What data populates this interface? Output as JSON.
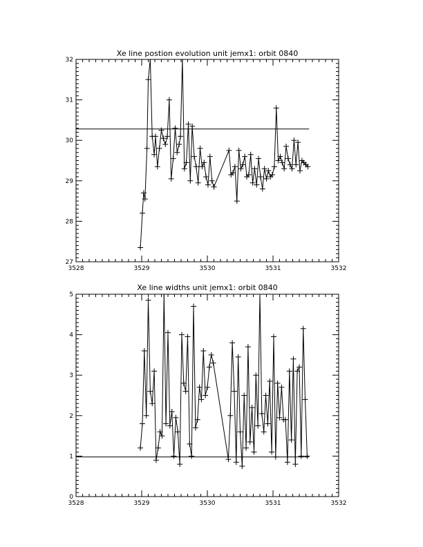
{
  "chart_data": [
    {
      "type": "line",
      "title": "Xe line postion evolution unit jemx1: orbit 0840",
      "xlabel": "",
      "ylabel": "",
      "xlim": [
        3528,
        3532
      ],
      "ylim": [
        27,
        32
      ],
      "xticks": [
        3528,
        3529,
        3530,
        3531,
        3532
      ],
      "xtick_labels": [
        "3528",
        "3529",
        "3530",
        "3531",
        "3532"
      ],
      "yticks": [
        27,
        28,
        29,
        30,
        31,
        32
      ],
      "ytick_labels": [
        "27",
        "28",
        "29",
        "30",
        "31",
        "32"
      ],
      "marker": "plus",
      "reference_line": {
        "y": 30.28,
        "x_range": [
          3528,
          3531.55
        ]
      },
      "series": [
        {
          "x": [
            3528.98,
            3529.01,
            3529.03,
            3529.05,
            3529.08,
            3529.1,
            3529.13,
            3529.16,
            3529.19,
            3529.21,
            3529.24,
            3529.27,
            3529.3,
            3529.33,
            3529.36,
            3529.39,
            3529.42,
            3529.45,
            3529.48,
            3529.51,
            3529.54,
            3529.57,
            3529.59,
            3529.62,
            3529.65,
            3529.68,
            3529.71,
            3529.74,
            3529.77,
            3529.8,
            3529.83,
            3529.86,
            3529.89,
            3529.92,
            3529.95,
            3529.98,
            3530.01,
            3530.04,
            3530.07,
            3530.1,
            3530.33,
            3530.36,
            3530.39,
            3530.42,
            3530.45,
            3530.48,
            3530.51,
            3530.54,
            3530.57,
            3530.6,
            3530.63,
            3530.66,
            3530.69,
            3530.72,
            3530.75,
            3530.78,
            3530.81,
            3530.84,
            3530.87,
            3530.9,
            3530.93,
            3530.96,
            3530.99,
            3531.02,
            3531.05,
            3531.08,
            3531.11,
            3531.14,
            3531.17,
            3531.2,
            3531.23,
            3531.26,
            3531.29,
            3531.32,
            3531.35,
            3531.38,
            3531.41,
            3531.44,
            3531.47,
            3531.5,
            3531.53
          ],
          "y": [
            27.35,
            28.2,
            28.7,
            28.55,
            29.8,
            31.5,
            32.0,
            30.1,
            29.65,
            30.1,
            29.35,
            29.8,
            30.25,
            30.05,
            29.9,
            30.1,
            31.0,
            29.05,
            29.55,
            30.3,
            29.7,
            29.9,
            30.1,
            32.0,
            29.3,
            29.45,
            30.4,
            29.0,
            30.35,
            29.6,
            29.35,
            28.95,
            29.8,
            29.35,
            29.45,
            29.1,
            28.9,
            29.6,
            29.0,
            28.85,
            29.75,
            29.15,
            29.2,
            29.35,
            28.5,
            29.75,
            29.3,
            29.4,
            29.6,
            29.1,
            29.15,
            29.65,
            28.95,
            29.3,
            28.9,
            29.55,
            29.1,
            28.8,
            29.3,
            29.05,
            29.25,
            29.1,
            29.15,
            29.35,
            30.8,
            29.5,
            29.6,
            29.45,
            29.3,
            29.85,
            29.55,
            29.4,
            29.3,
            30.0,
            29.4,
            29.95,
            29.25,
            29.5,
            29.45,
            29.4,
            29.35
          ]
        }
      ]
    },
    {
      "type": "line",
      "title": "Xe line widths unit jemx1: orbit 0840",
      "xlabel": "",
      "ylabel": "",
      "xlim": [
        3528,
        3532
      ],
      "ylim": [
        0,
        5
      ],
      "xticks": [
        3528,
        3529,
        3530,
        3531,
        3532
      ],
      "xtick_labels": [
        "3528",
        "3529",
        "3530",
        "3531",
        "3532"
      ],
      "yticks": [
        0,
        1,
        2,
        3,
        4,
        5
      ],
      "ytick_labels": [
        "0",
        "1",
        "2",
        "3",
        "4",
        "5"
      ],
      "marker": "plus",
      "reference_line": {
        "y": 0.98,
        "x_range": [
          3528,
          3531.55
        ]
      },
      "series": [
        {
          "x": [
            3528.98,
            3529.01,
            3529.04,
            3529.07,
            3529.1,
            3529.13,
            3529.16,
            3529.19,
            3529.22,
            3529.25,
            3529.28,
            3529.31,
            3529.34,
            3529.37,
            3529.4,
            3529.43,
            3529.46,
            3529.49,
            3529.52,
            3529.55,
            3529.58,
            3529.61,
            3529.64,
            3529.67,
            3529.7,
            3529.73,
            3529.76,
            3529.79,
            3529.82,
            3529.85,
            3529.88,
            3529.91,
            3529.94,
            3529.97,
            3530.0,
            3530.03,
            3530.06,
            3530.09,
            3530.32,
            3530.35,
            3530.38,
            3530.41,
            3530.44,
            3530.47,
            3530.5,
            3530.53,
            3530.56,
            3530.59,
            3530.62,
            3530.65,
            3530.68,
            3530.71,
            3530.74,
            3530.77,
            3530.8,
            3530.83,
            3530.86,
            3530.89,
            3530.92,
            3530.95,
            3530.98,
            3531.01,
            3531.04,
            3531.07,
            3531.1,
            3531.13,
            3531.16,
            3531.19,
            3531.22,
            3531.25,
            3531.28,
            3531.31,
            3531.34,
            3531.37,
            3531.4,
            3531.43,
            3531.46,
            3531.49,
            3531.52
          ],
          "y": [
            1.2,
            1.8,
            3.6,
            2.0,
            4.85,
            2.6,
            2.3,
            3.1,
            0.9,
            1.2,
            1.6,
            1.5,
            5.0,
            1.8,
            4.05,
            1.75,
            2.1,
            1.0,
            1.95,
            1.6,
            0.8,
            4.0,
            2.8,
            2.6,
            3.95,
            1.3,
            1.0,
            4.7,
            1.7,
            1.9,
            2.7,
            2.4,
            3.6,
            2.5,
            2.7,
            3.2,
            3.5,
            3.3,
            0.92,
            2.0,
            3.8,
            2.6,
            0.85,
            3.45,
            1.6,
            0.75,
            2.5,
            1.2,
            3.7,
            1.35,
            2.2,
            1.1,
            3.0,
            1.75,
            5.0,
            2.05,
            1.6,
            2.5,
            1.8,
            2.85,
            1.1,
            3.95,
            0.98,
            2.8,
            1.95,
            2.7,
            1.9,
            1.9,
            0.85,
            3.1,
            1.4,
            3.4,
            0.8,
            3.1,
            3.2,
            1.0,
            4.15,
            2.4,
            1.0
          ]
        }
      ]
    }
  ]
}
